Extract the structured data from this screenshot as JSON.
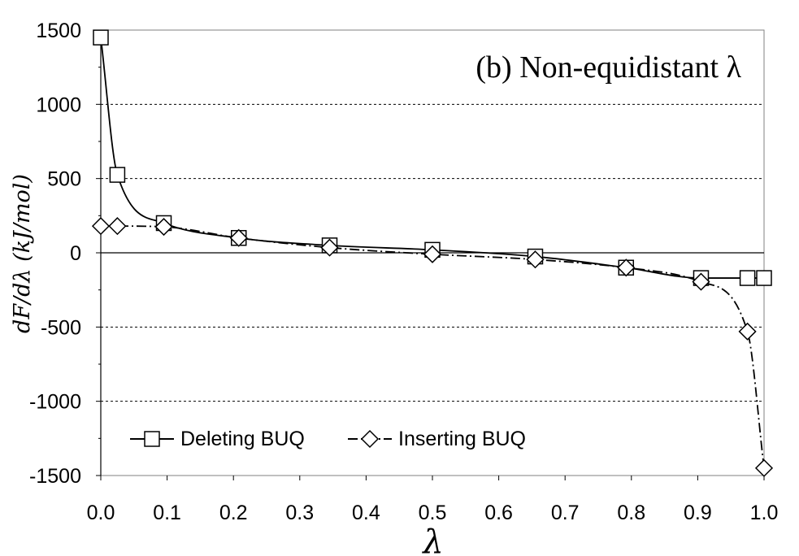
{
  "chart_data": {
    "type": "line",
    "title": "(b) Non-equidistant λ",
    "xlabel": "λ",
    "ylabel": "dF/dλ (kJ/mol)",
    "xlim": [
      0,
      1
    ],
    "ylim": [
      -1500,
      1500
    ],
    "x_ticks": [
      "0.0",
      "0.1",
      "0.2",
      "0.3",
      "0.4",
      "0.5",
      "0.6",
      "0.7",
      "0.8",
      "0.9",
      "1.0"
    ],
    "y_ticks": [
      "1500",
      "1000",
      "500",
      "0",
      "-500",
      "-1000",
      "-1500"
    ],
    "grid": "horizontal dotted",
    "legend_position": "bottom-left",
    "series": [
      {
        "name": "Deleting BUQ",
        "marker": "square",
        "line": "solid",
        "color": "#000000",
        "x": [
          0.0,
          0.025,
          0.095,
          0.208,
          0.345,
          0.5,
          0.655,
          0.792,
          0.905,
          0.975,
          1.0
        ],
        "y": [
          1450,
          525,
          200,
          100,
          50,
          20,
          -25,
          -100,
          -170,
          -170,
          -170
        ]
      },
      {
        "name": "Inserting BUQ",
        "marker": "diamond",
        "line": "dash-dot",
        "color": "#000000",
        "x": [
          0.0,
          0.025,
          0.095,
          0.208,
          0.345,
          0.5,
          0.655,
          0.792,
          0.905,
          0.975,
          1.0
        ],
        "y": [
          180,
          180,
          175,
          100,
          35,
          -10,
          -45,
          -100,
          -195,
          -530,
          -1450
        ]
      }
    ]
  }
}
